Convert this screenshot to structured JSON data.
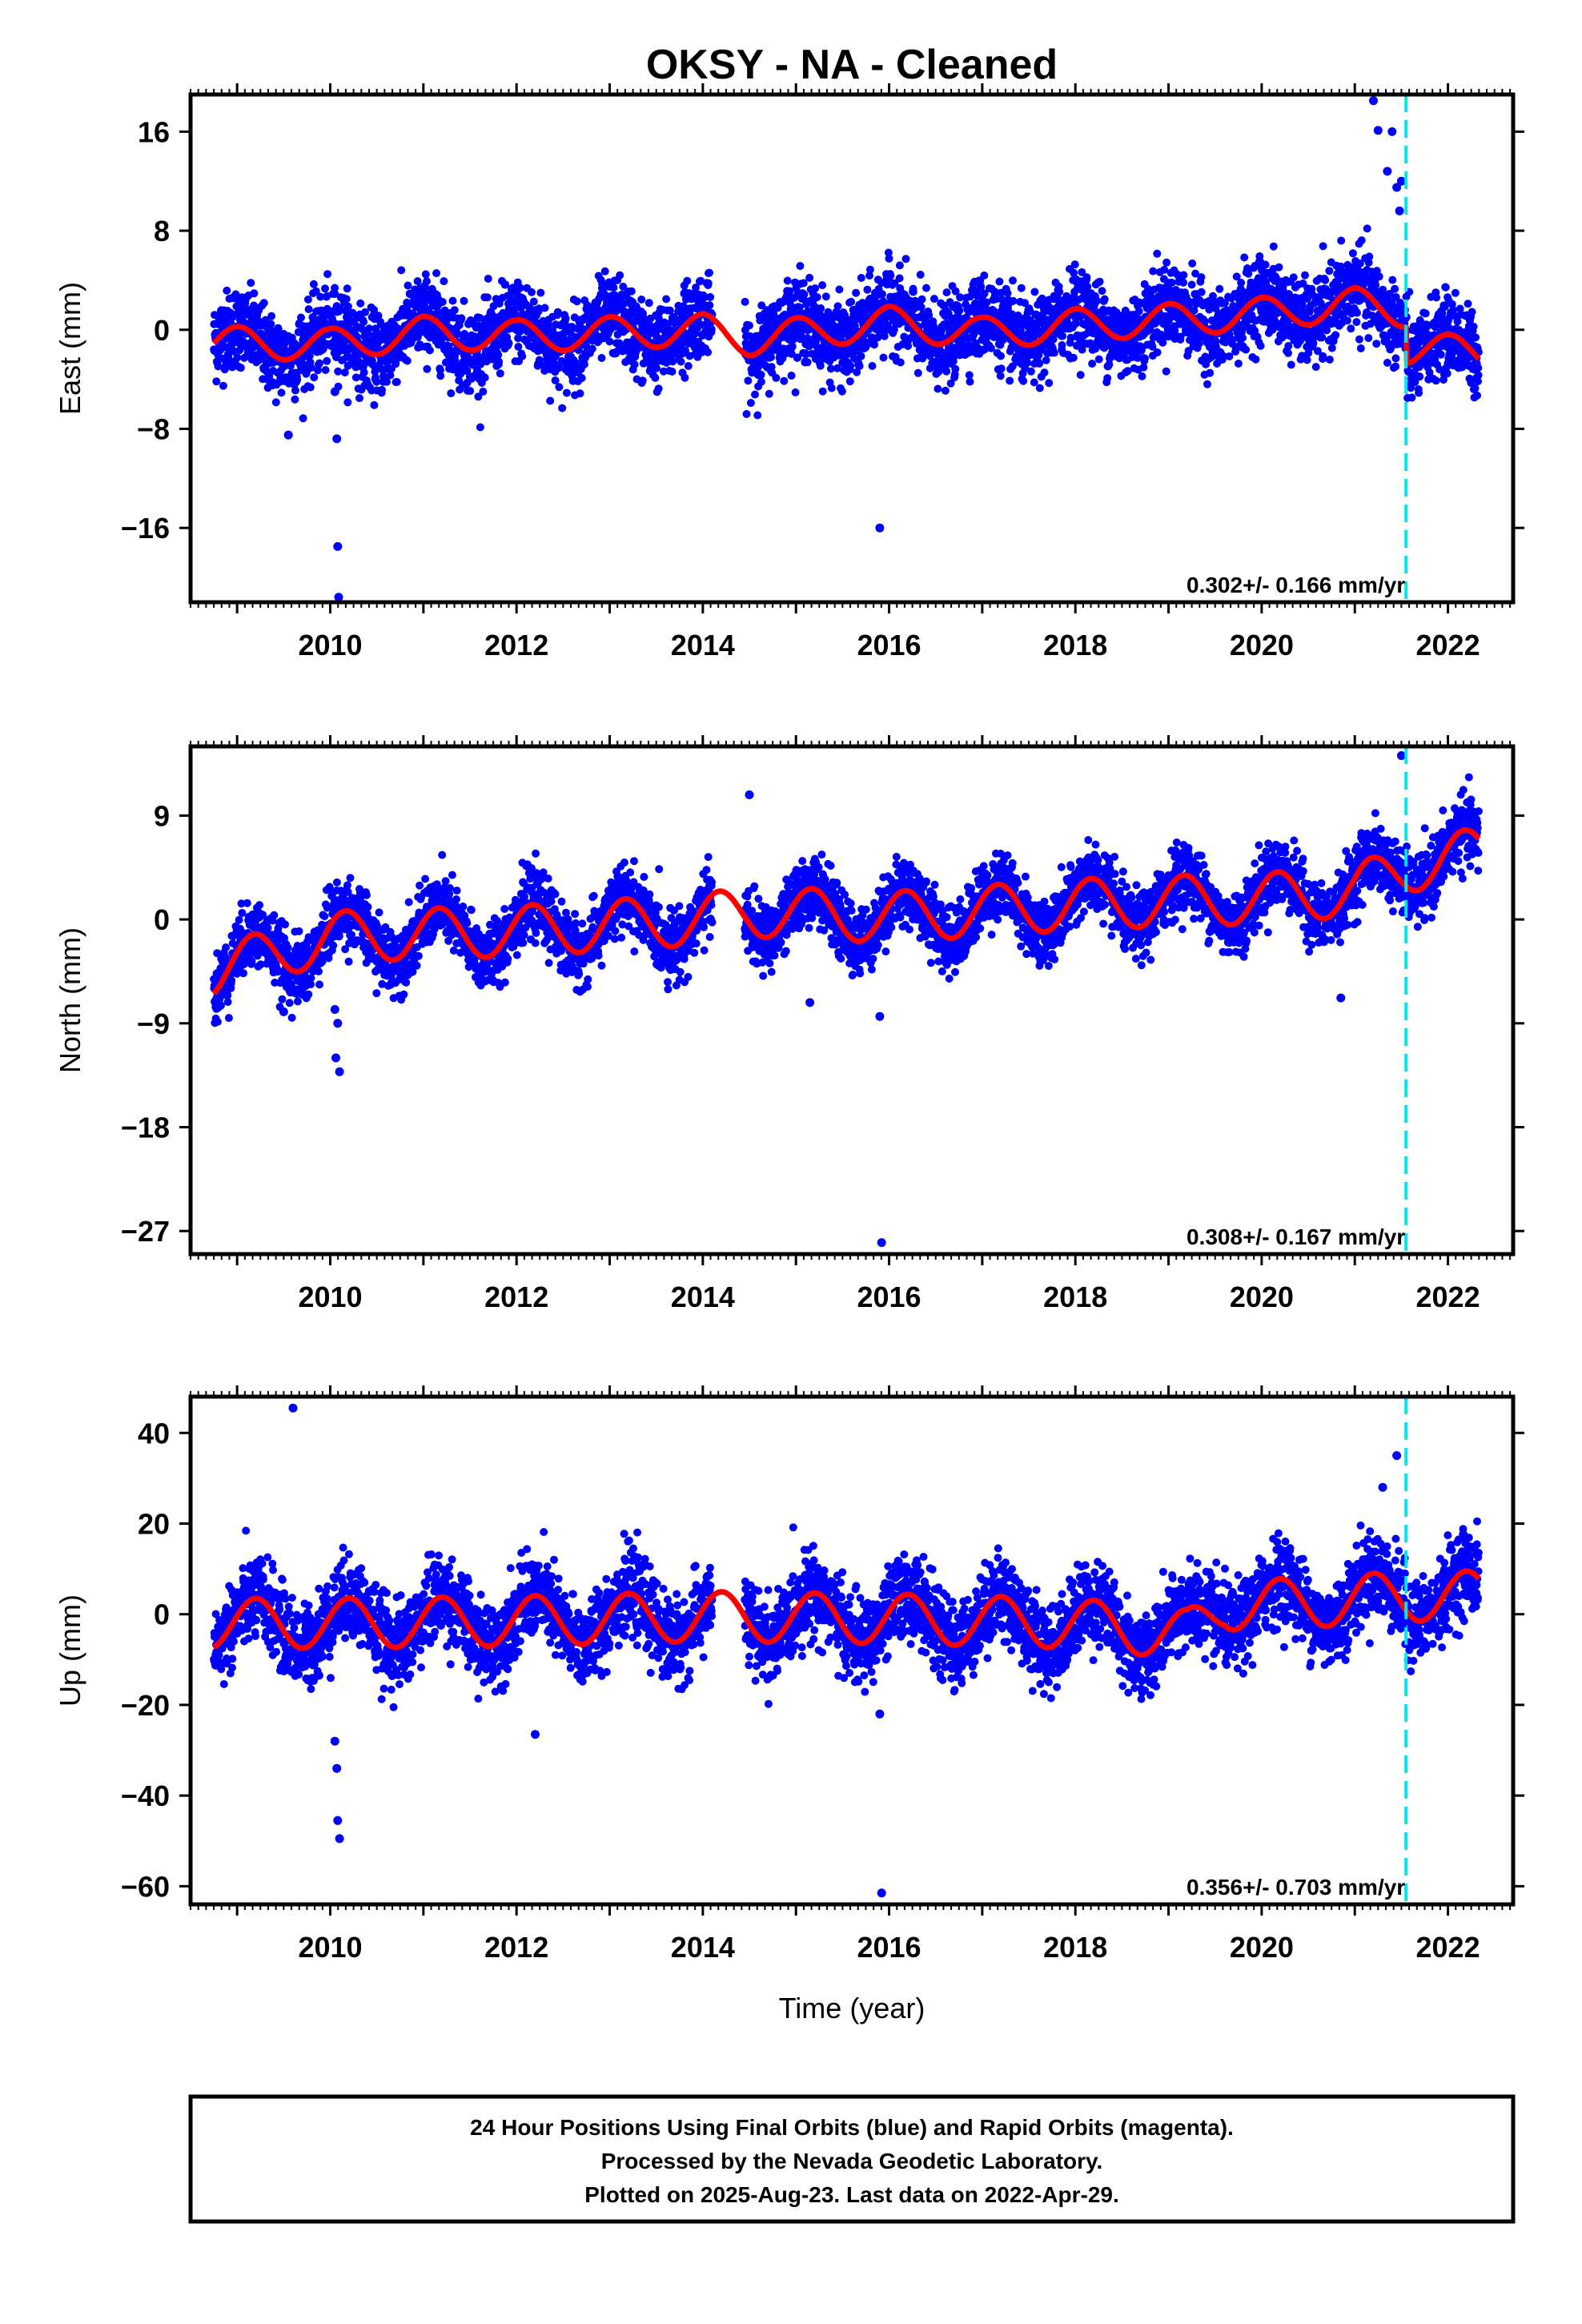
{
  "chart_data": {
    "type": "scatter",
    "title": "OKSY  - NA - Cleaned",
    "xlabel": "Time (year)",
    "xlim": [
      2008.5,
      2022.7
    ],
    "xticks": [
      2010,
      2012,
      2014,
      2016,
      2018,
      2020,
      2022
    ],
    "xticks_labels": [
      "2010",
      "2012",
      "2014",
      "2016",
      "2018",
      "2020",
      "2022"
    ],
    "start_year": 2008.75,
    "end_year": 2022.33,
    "gap": [
      2014.1,
      2014.45
    ],
    "event_year": 2021.55,
    "colors": {
      "points": "#0000ff",
      "fit": "#ff0000",
      "event": "#00e5ee",
      "frame": "#000000"
    },
    "panels": [
      {
        "name": "east",
        "ylabel": "East (mm)",
        "ylim": [
          -22,
          19
        ],
        "yticks": [
          16,
          8,
          0,
          -8,
          -16
        ],
        "yticks_labels": [
          "16",
          "8",
          "0",
          "−8",
          "−16"
        ],
        "rate": "0.302+/- 0.166 mm/yr",
        "trend_knots": [
          [
            2008.75,
            -1.0
          ],
          [
            2010,
            -1.2
          ],
          [
            2011,
            -0.2
          ],
          [
            2012,
            -0.5
          ],
          [
            2014,
            0.0
          ],
          [
            2014.5,
            -0.8
          ],
          [
            2016,
            0.6
          ],
          [
            2017,
            -0.3
          ],
          [
            2018,
            0.4
          ],
          [
            2019,
            0.8
          ],
          [
            2020,
            1.3
          ],
          [
            2021,
            2.1
          ],
          [
            2021.55,
            1.5
          ],
          [
            2021.56,
            -1.5
          ],
          [
            2022.33,
            -1.8
          ]
        ],
        "seasonal_amp": 1.3,
        "seasonal_phase": 1.5,
        "noise": 1.6,
        "outliers": [
          [
            2009.55,
            -8.5
          ],
          [
            2010.05,
            -5.0
          ],
          [
            2010.07,
            -8.8
          ],
          [
            2010.08,
            -17.5
          ],
          [
            2010.09,
            -21.6
          ],
          [
            2015.9,
            -16.0
          ],
          [
            2021.2,
            18.5
          ],
          [
            2021.25,
            16.1
          ],
          [
            2021.4,
            16.0
          ],
          [
            2021.35,
            12.8
          ],
          [
            2021.45,
            11.5
          ],
          [
            2021.5,
            12.0
          ],
          [
            2021.48,
            9.6
          ]
        ]
      },
      {
        "name": "north",
        "ylabel": "North (mm)",
        "ylim": [
          -29,
          15
        ],
        "yticks": [
          9,
          0,
          -9,
          -18,
          -27
        ],
        "yticks_labels": [
          "9",
          "0",
          "−9",
          "−18",
          "−27"
        ],
        "rate": "0.308+/- 0.167 mm/yr",
        "trend_knots": [
          [
            2008.75,
            -4.5
          ],
          [
            2010,
            -1.5
          ],
          [
            2012,
            -1.0
          ],
          [
            2014,
            0.0
          ],
          [
            2014.5,
            0.7
          ],
          [
            2016,
            0.2
          ],
          [
            2018,
            1.3
          ],
          [
            2019,
            1.6
          ],
          [
            2020,
            1.8
          ],
          [
            2021,
            2.5
          ],
          [
            2021.55,
            4.5
          ],
          [
            2022.33,
            5.8
          ]
        ],
        "seasonal_amp": 2.2,
        "seasonal_phase": 0.5,
        "noise": 1.4,
        "outliers": [
          [
            2009.5,
            -8.0
          ],
          [
            2010.05,
            -7.8
          ],
          [
            2010.08,
            -9.0
          ],
          [
            2010.06,
            -12.0
          ],
          [
            2010.1,
            -13.2
          ],
          [
            2014.5,
            10.8
          ],
          [
            2015.15,
            -7.2
          ],
          [
            2015.9,
            -8.4
          ],
          [
            2015.92,
            -28.0
          ],
          [
            2020.85,
            -6.8
          ],
          [
            2021.5,
            14.2
          ]
        ]
      },
      {
        "name": "up",
        "ylabel": "Up (mm)",
        "ylim": [
          -64,
          48
        ],
        "yticks": [
          40,
          20,
          0,
          -20,
          -40,
          -60
        ],
        "yticks_labels": [
          "40",
          "20",
          "0",
          "−20",
          "−40",
          "−60"
        ],
        "rate": "0.356+/- 0.703 mm/yr",
        "trend_knots": [
          [
            2008.75,
            -2.0
          ],
          [
            2010,
            -2.0
          ],
          [
            2012,
            -1.5
          ],
          [
            2014,
            -0.5
          ],
          [
            2016,
            -1.0
          ],
          [
            2018,
            -2.0
          ],
          [
            2019.2,
            -4.5
          ],
          [
            2019.6,
            2.0
          ],
          [
            2020.5,
            2.5
          ],
          [
            2021.5,
            4.0
          ],
          [
            2022.33,
            4.0
          ]
        ],
        "seasonal_amp": 5.5,
        "seasonal_phase": 0.3,
        "noise": 4.5,
        "outliers": [
          [
            2009.6,
            45.5
          ],
          [
            2010.05,
            -28.0
          ],
          [
            2010.07,
            -34.0
          ],
          [
            2010.08,
            -45.5
          ],
          [
            2010.1,
            -49.5
          ],
          [
            2012.2,
            -26.5
          ],
          [
            2015.9,
            -22.0
          ],
          [
            2015.92,
            -61.5
          ],
          [
            2021.45,
            35.0
          ],
          [
            2021.3,
            28.0
          ]
        ]
      }
    ]
  },
  "footer": {
    "line1": "24 Hour Positions Using Final Orbits (blue) and Rapid Orbits (magenta).",
    "line2": "Processed by the Nevada Geodetic Laboratory.",
    "line3": "Plotted on 2025-Aug-23. Last data on 2022-Apr-29."
  }
}
